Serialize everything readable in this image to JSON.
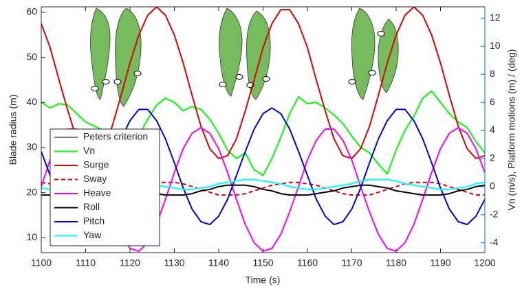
{
  "chart_data": {
    "type": "line",
    "x_label": "Time (s)",
    "y_label": "Blade radius (m)",
    "y2_label": "Vn (m/s), Platform motions (m) / (deg)",
    "x": [
      1100,
      1102,
      1104,
      1106,
      1108,
      1110,
      1112,
      1114,
      1116,
      1118,
      1120,
      1122,
      1124,
      1126,
      1128,
      1130,
      1132,
      1134,
      1136,
      1138,
      1140,
      1142,
      1144,
      1146,
      1148,
      1150,
      1152,
      1154,
      1156,
      1158,
      1160,
      1162,
      1164,
      1166,
      1168,
      1170,
      1172,
      1174,
      1176,
      1178,
      1180,
      1182,
      1184,
      1186,
      1188,
      1190,
      1192,
      1194,
      1196,
      1198,
      1200
    ],
    "xlim": [
      1100,
      1200
    ],
    "xticks": [
      1100,
      1110,
      1120,
      1130,
      1140,
      1150,
      1160,
      1170,
      1180,
      1190,
      1200
    ],
    "ylim": [
      6.7,
      61.2
    ],
    "yticks": [
      10,
      20,
      30,
      40,
      50,
      60
    ],
    "y2lim": [
      -4.7,
      12.8
    ],
    "y2ticks": [
      -4,
      -2,
      0,
      2,
      4,
      6,
      8,
      10,
      12
    ],
    "y2_color": "#0072bd",
    "legend": "lower left",
    "series": [
      {
        "name": "Peters criterion",
        "color": "#000000",
        "axis": "y",
        "values": [
          null,
          null,
          null,
          null,
          null,
          null,
          null,
          null,
          null,
          null,
          null,
          null,
          null,
          null,
          null,
          null,
          null,
          null,
          null,
          null,
          null,
          null,
          null,
          null,
          null,
          null,
          null,
          null,
          null,
          null,
          null,
          null,
          null,
          null,
          null,
          null,
          null,
          null,
          null,
          null,
          null,
          null,
          null,
          null,
          null,
          null,
          null,
          null,
          null,
          null,
          null
        ]
      },
      {
        "name": "Vn",
        "color": "#00ff00",
        "axis": "y2",
        "values": [
          6.0,
          5.6,
          5.9,
          5.8,
          5.2,
          4.6,
          4.3,
          4.0,
          3.6,
          3.0,
          2.6,
          3.6,
          4.8,
          5.8,
          6.3,
          6.0,
          5.4,
          5.7,
          5.5,
          4.8,
          3.8,
          2.6,
          2.0,
          2.4,
          1.2,
          0.8,
          2.0,
          3.5,
          5.2,
          6.4,
          5.9,
          6.0,
          5.6,
          5.1,
          4.5,
          3.6,
          2.8,
          2.4,
          1.6,
          0.9,
          2.6,
          4.0,
          5.0,
          6.3,
          6.8,
          6.0,
          5.2,
          4.6,
          4.2,
          3.2,
          2.4
        ]
      },
      {
        "name": "Surge",
        "color": "#e00000",
        "axis": "y2",
        "values": [
          11.6,
          9.9,
          7.6,
          5.4,
          3.4,
          2.2,
          2.0,
          2.7,
          4.3,
          6.5,
          8.8,
          10.8,
          12.2,
          12.8,
          12.2,
          10.8,
          8.8,
          6.5,
          4.3,
          2.7,
          2.0,
          2.2,
          3.4,
          5.4,
          7.6,
          9.9,
          11.6,
          12.6,
          12.6,
          11.6,
          9.9,
          7.6,
          5.4,
          3.4,
          2.2,
          2.0,
          2.7,
          4.3,
          6.5,
          8.8,
          10.8,
          12.2,
          12.8,
          12.2,
          10.8,
          8.8,
          6.5,
          4.3,
          2.7,
          2.0,
          2.2
        ]
      },
      {
        "name": "Sway",
        "color": "#e00000",
        "axis": "y2",
        "dash": "dashed",
        "values": [
          0.3,
          0.2,
          0.1,
          -0.1,
          -0.3,
          -0.5,
          -0.6,
          -0.6,
          -0.6,
          -0.4,
          -0.2,
          0.0,
          0.2,
          0.3,
          0.3,
          0.3,
          0.2,
          0.0,
          -0.2,
          -0.4,
          -0.6,
          -0.6,
          -0.6,
          -0.5,
          -0.3,
          -0.1,
          0.1,
          0.2,
          0.3,
          0.3,
          0.2,
          0.1,
          -0.1,
          -0.3,
          -0.5,
          -0.6,
          -0.6,
          -0.6,
          -0.4,
          -0.2,
          0.0,
          0.2,
          0.3,
          0.3,
          0.3,
          0.2,
          0.0,
          -0.2,
          -0.4,
          -0.6,
          -0.6
        ]
      },
      {
        "name": "Heave",
        "color": "#ff00ff",
        "axis": "y2",
        "values": [
          0.0,
          1.9,
          3.3,
          4.1,
          4.1,
          3.3,
          1.9,
          0.0,
          -1.8,
          -3.4,
          -4.4,
          -4.6,
          -4.0,
          -2.7,
          -0.9,
          1.0,
          2.7,
          3.8,
          4.2,
          3.8,
          2.7,
          1.0,
          -0.9,
          -2.7,
          -4.0,
          -4.6,
          -4.4,
          -3.4,
          -1.8,
          0.0,
          1.9,
          3.3,
          4.1,
          4.1,
          3.3,
          1.9,
          0.0,
          -1.8,
          -3.4,
          -4.4,
          -4.6,
          -4.0,
          -2.7,
          -0.9,
          1.0,
          2.7,
          3.8,
          4.2,
          3.8,
          2.7,
          1.0
        ]
      },
      {
        "name": "Roll",
        "color": "#000000",
        "axis": "y2",
        "values": [
          -0.6,
          -0.6,
          -0.5,
          -0.4,
          -0.3,
          -0.1,
          0.0,
          0.1,
          0.1,
          0.0,
          -0.1,
          -0.3,
          -0.4,
          -0.5,
          -0.6,
          -0.6,
          -0.6,
          -0.5,
          -0.3,
          -0.2,
          0.0,
          0.1,
          0.1,
          0.1,
          0.0,
          -0.2,
          -0.3,
          -0.5,
          -0.6,
          -0.6,
          -0.6,
          -0.5,
          -0.4,
          -0.3,
          -0.1,
          0.0,
          0.1,
          0.1,
          0.0,
          -0.1,
          -0.3,
          -0.4,
          -0.5,
          -0.6,
          -0.6,
          -0.6,
          -0.5,
          -0.3,
          -0.2,
          0.0,
          0.1
        ]
      },
      {
        "name": "Pitch",
        "color": "#0000dd",
        "axis": "y2",
        "values": [
          2.5,
          0.8,
          -0.9,
          -2.1,
          -2.7,
          -2.5,
          -1.6,
          -0.1,
          1.7,
          3.4,
          4.7,
          5.5,
          5.5,
          4.7,
          3.4,
          1.7,
          -0.1,
          -1.6,
          -2.5,
          -2.7,
          -2.1,
          -0.9,
          0.8,
          2.5,
          4.1,
          5.2,
          5.6,
          5.2,
          4.1,
          2.5,
          0.8,
          -0.9,
          -2.1,
          -2.7,
          -2.5,
          -1.6,
          -0.1,
          1.7,
          3.4,
          4.7,
          5.5,
          5.5,
          4.7,
          3.4,
          1.7,
          -0.1,
          -1.6,
          -2.5,
          -2.7,
          -2.1,
          -0.9
        ]
      },
      {
        "name": "Yaw",
        "color": "#00ffff",
        "axis": "y2",
        "values": [
          -0.1,
          -0.2,
          -0.2,
          -0.1,
          0.0,
          0.1,
          0.2,
          0.4,
          0.5,
          0.5,
          0.5,
          0.4,
          0.2,
          0.1,
          0.0,
          -0.1,
          -0.2,
          -0.2,
          -0.1,
          0.0,
          0.2,
          0.3,
          0.4,
          0.5,
          0.5,
          0.4,
          0.3,
          0.2,
          0.0,
          -0.1,
          -0.2,
          -0.2,
          -0.1,
          0.0,
          0.1,
          0.2,
          0.4,
          0.5,
          0.5,
          0.5,
          0.4,
          0.2,
          0.1,
          0.0,
          -0.1,
          -0.2,
          -0.2,
          -0.1,
          0.0,
          0.2,
          0.3
        ]
      }
    ]
  }
}
